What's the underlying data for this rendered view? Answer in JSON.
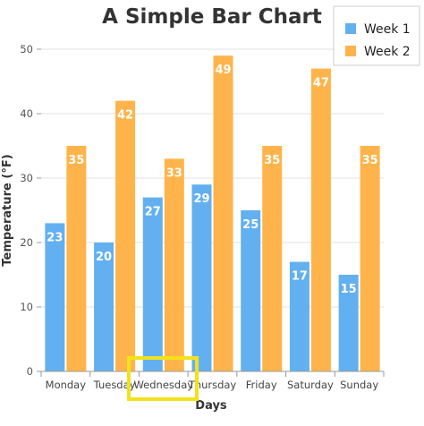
{
  "chart_data": {
    "type": "bar",
    "title": "A Simple Bar Chart",
    "xlabel": "Days",
    "ylabel": "Temperature (°F)",
    "categories": [
      "Monday",
      "Tuesday",
      "Wednesday",
      "Thursday",
      "Friday",
      "Saturday",
      "Sunday"
    ],
    "series": [
      {
        "name": "Week 1",
        "color": "#63b0f0",
        "values": [
          23,
          20,
          27,
          29,
          25,
          17,
          15
        ]
      },
      {
        "name": "Week 2",
        "color": "#feb44a",
        "values": [
          35,
          42,
          33,
          49,
          35,
          47,
          35
        ]
      }
    ],
    "ylim": [
      0,
      50
    ],
    "yticks": [
      0,
      10,
      20,
      30,
      40,
      50
    ],
    "grid": true,
    "legend_position": "top-right",
    "highlight_color": "#f1e21a"
  }
}
